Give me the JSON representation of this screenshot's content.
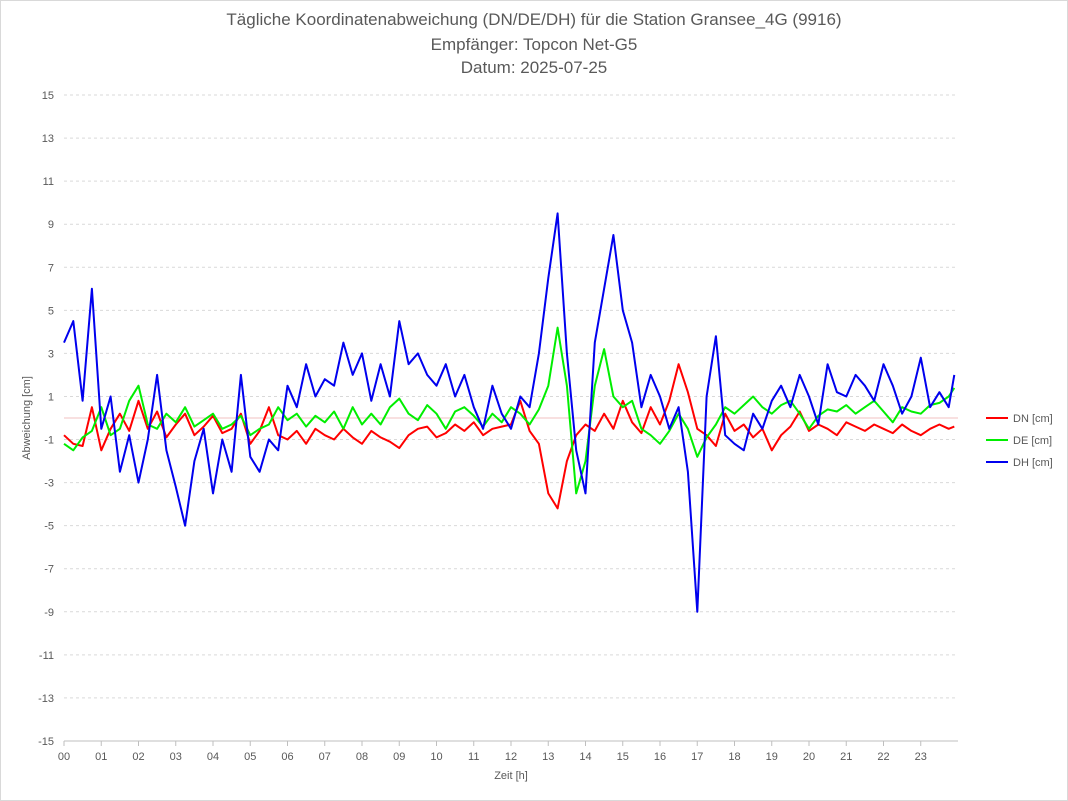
{
  "chart_data": {
    "type": "line",
    "title_lines": [
      "Tägliche Koordinatenabweichung (DN/DE/DH) für die Station Gransee_4G (9916)",
      "Empfänger: Topcon Net-G5",
      "Datum: 2025-07-25"
    ],
    "xlabel": "Zeit [h]",
    "ylabel": "Abweichung [cm]",
    "xlim": [
      0,
      24
    ],
    "ylim": [
      -15,
      15
    ],
    "x_ticks": [
      "00",
      "01",
      "02",
      "03",
      "04",
      "05",
      "06",
      "07",
      "08",
      "09",
      "10",
      "11",
      "12",
      "13",
      "14",
      "15",
      "16",
      "17",
      "18",
      "19",
      "20",
      "21",
      "22",
      "23"
    ],
    "y_ticks": [
      15,
      13,
      11,
      9,
      7,
      5,
      3,
      1,
      -1,
      -3,
      -5,
      -7,
      -9,
      -11,
      -13,
      -15
    ],
    "grid": "horizontal dashed",
    "legend_position": "right",
    "x_hours": [
      0.0,
      0.25,
      0.5,
      0.75,
      1.0,
      1.25,
      1.5,
      1.75,
      2.0,
      2.25,
      2.5,
      2.75,
      3.0,
      3.25,
      3.5,
      3.75,
      4.0,
      4.25,
      4.5,
      4.75,
      5.0,
      5.25,
      5.5,
      5.75,
      6.0,
      6.25,
      6.5,
      6.75,
      7.0,
      7.25,
      7.5,
      7.75,
      8.0,
      8.25,
      8.5,
      8.75,
      9.0,
      9.25,
      9.5,
      9.75,
      10.0,
      10.25,
      10.5,
      10.75,
      11.0,
      11.25,
      11.5,
      11.75,
      12.0,
      12.25,
      12.5,
      12.75,
      13.0,
      13.25,
      13.5,
      13.75,
      14.0,
      14.25,
      14.5,
      14.75,
      15.0,
      15.25,
      15.5,
      15.75,
      16.0,
      16.25,
      16.5,
      16.75,
      17.0,
      17.25,
      17.5,
      17.75,
      18.0,
      18.25,
      18.5,
      18.75,
      19.0,
      19.25,
      19.5,
      19.75,
      20.0,
      20.25,
      20.5,
      20.75,
      21.0,
      21.25,
      21.5,
      21.75,
      22.0,
      22.25,
      22.5,
      22.75,
      23.0,
      23.25,
      23.5,
      23.75,
      23.9
    ],
    "series": [
      {
        "name": "DN [cm]",
        "color": "#ff0000",
        "values": [
          -0.8,
          -1.2,
          -1.3,
          0.5,
          -1.5,
          -0.5,
          0.2,
          -0.6,
          0.8,
          -0.5,
          0.3,
          -0.9,
          -0.3,
          0.2,
          -0.8,
          -0.4,
          0.1,
          -0.7,
          -0.5,
          0.2,
          -1.2,
          -0.6,
          0.5,
          -0.8,
          -1.0,
          -0.6,
          -1.2,
          -0.5,
          -0.8,
          -1.0,
          -0.5,
          -0.9,
          -1.2,
          -0.6,
          -0.9,
          -1.1,
          -1.4,
          -0.8,
          -0.5,
          -0.4,
          -0.9,
          -0.7,
          -0.3,
          -0.6,
          -0.2,
          -0.8,
          -0.5,
          -0.4,
          -0.3,
          0.8,
          -0.6,
          -1.2,
          -3.5,
          -4.2,
          -2.0,
          -0.8,
          -0.3,
          -0.6,
          0.2,
          -0.5,
          0.8,
          -0.2,
          -0.7,
          0.5,
          -0.3,
          0.8,
          2.5,
          1.2,
          -0.5,
          -0.8,
          -1.3,
          0.2,
          -0.6,
          -0.3,
          -0.9,
          -0.5,
          -1.5,
          -0.8,
          -0.4,
          0.3,
          -0.6,
          -0.3,
          -0.5,
          -0.8,
          -0.2,
          -0.4,
          -0.6,
          -0.3,
          -0.5,
          -0.7,
          -0.3,
          -0.6,
          -0.8,
          -0.5,
          -0.3,
          -0.5,
          -0.4
        ]
      },
      {
        "name": "DE [cm]",
        "color": "#00ee00",
        "values": [
          -1.2,
          -1.5,
          -0.9,
          -0.6,
          0.5,
          -0.8,
          -0.5,
          0.8,
          1.5,
          -0.3,
          -0.5,
          0.2,
          -0.2,
          0.5,
          -0.4,
          -0.1,
          0.2,
          -0.5,
          -0.3,
          0.1,
          -0.8,
          -0.5,
          -0.3,
          0.5,
          -0.1,
          0.2,
          -0.4,
          0.1,
          -0.2,
          0.3,
          -0.5,
          0.5,
          -0.3,
          0.2,
          -0.3,
          0.5,
          0.9,
          0.2,
          -0.1,
          0.6,
          0.2,
          -0.5,
          0.3,
          0.5,
          0.1,
          -0.4,
          0.2,
          -0.2,
          0.5,
          0.2,
          -0.3,
          0.4,
          1.5,
          4.2,
          1.5,
          -3.5,
          -2.0,
          1.5,
          3.2,
          1.0,
          0.5,
          0.8,
          -0.5,
          -0.8,
          -1.2,
          -0.6,
          0.2,
          -0.5,
          -1.8,
          -0.9,
          -0.3,
          0.5,
          0.2,
          0.6,
          1.0,
          0.5,
          0.2,
          0.6,
          0.8,
          0.2,
          -0.5,
          0.1,
          0.4,
          0.3,
          0.6,
          0.2,
          0.5,
          0.8,
          0.3,
          -0.2,
          0.5,
          0.3,
          0.2,
          0.6,
          0.7,
          1.0,
          1.4
        ]
      },
      {
        "name": "DH [cm]",
        "color": "#0000ee",
        "values": [
          3.5,
          4.5,
          0.8,
          6.0,
          -0.5,
          1.0,
          -2.5,
          -0.8,
          -3.0,
          -1.0,
          2.0,
          -1.5,
          -3.2,
          -5.0,
          -2.0,
          -0.5,
          -3.5,
          -1.0,
          -2.5,
          2.0,
          -1.8,
          -2.5,
          -1.0,
          -1.5,
          1.5,
          0.5,
          2.5,
          1.0,
          1.8,
          1.5,
          3.5,
          2.0,
          3.0,
          0.8,
          2.5,
          1.0,
          4.5,
          2.5,
          3.0,
          2.0,
          1.5,
          2.5,
          1.0,
          2.0,
          0.5,
          -0.5,
          1.5,
          0.2,
          -0.5,
          1.0,
          0.5,
          3.0,
          6.5,
          9.5,
          3.0,
          -1.5,
          -3.5,
          3.5,
          6.0,
          8.5,
          5.0,
          3.5,
          0.5,
          2.0,
          1.0,
          -0.5,
          0.5,
          -2.5,
          -9.0,
          1.0,
          3.8,
          -0.8,
          -1.2,
          -1.5,
          0.2,
          -0.5,
          0.8,
          1.5,
          0.5,
          2.0,
          1.0,
          -0.3,
          2.5,
          1.2,
          1.0,
          2.0,
          1.5,
          0.8,
          2.5,
          1.5,
          0.2,
          1.0,
          2.8,
          0.5,
          1.2,
          0.5,
          2.0
        ]
      }
    ]
  }
}
